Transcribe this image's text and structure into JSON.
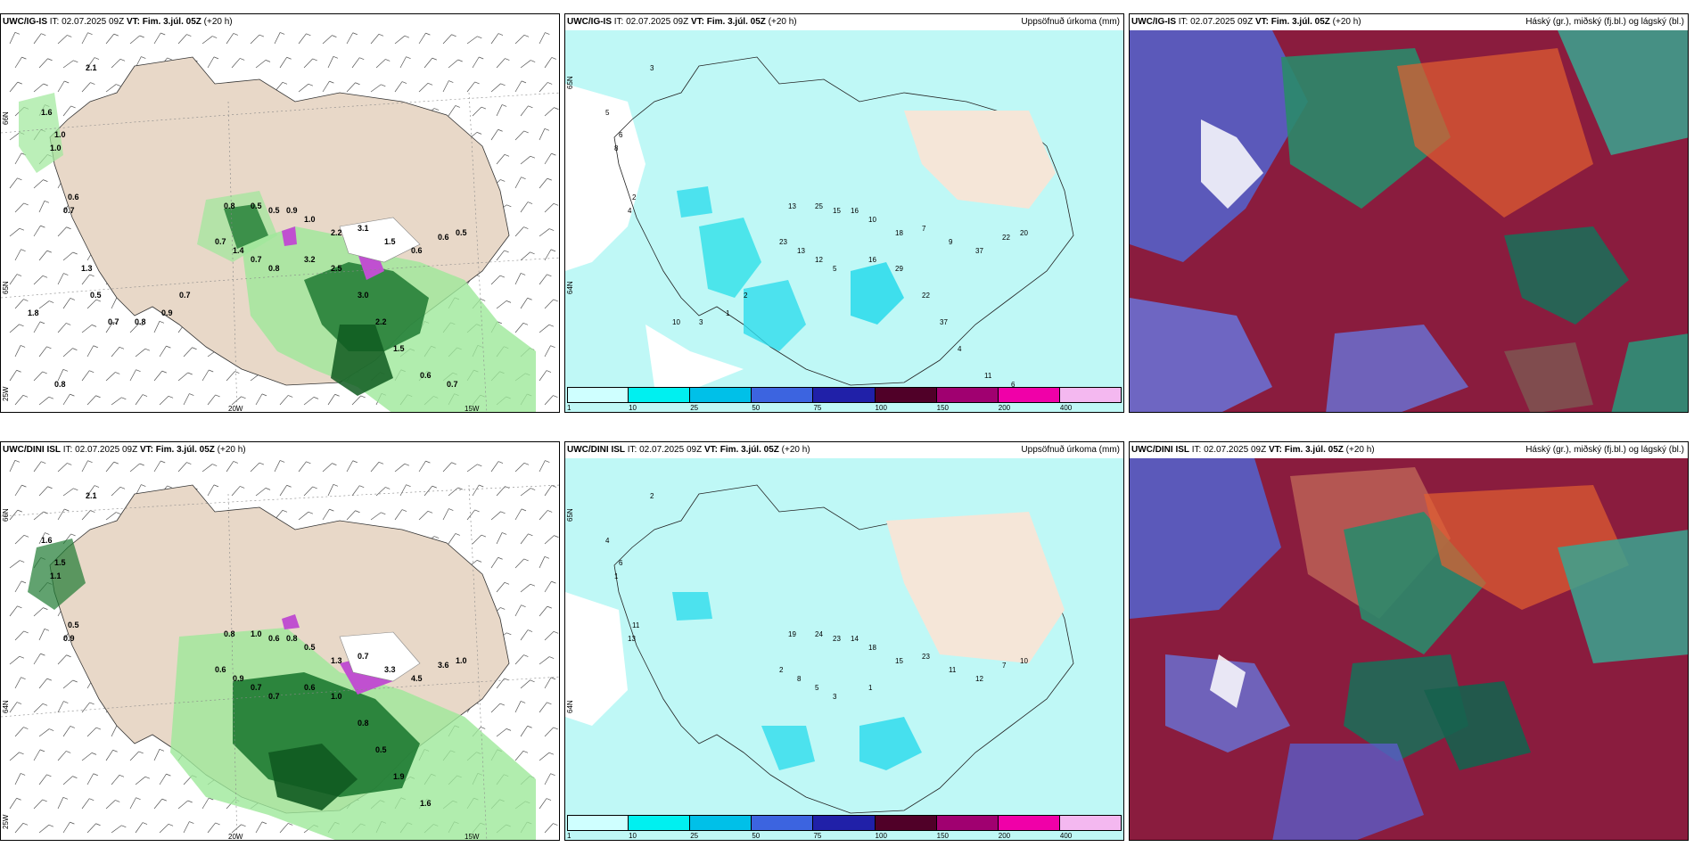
{
  "panels": {
    "p1": {
      "model": "UWC/IG-IS",
      "it": "IT: 02.07.2025 09Z",
      "vt": "VT: Fim. 3.júl. 05Z",
      "lead": "(+20 h)"
    },
    "p2": {
      "model": "UWC/IG-IS",
      "it": "IT: 02.07.2025 09Z",
      "vt": "VT: Fim. 3.júl. 05Z",
      "lead": "(+20 h)",
      "right": "Uppsöfnuð úrkoma (mm)"
    },
    "p3": {
      "model": "UWC/IG-IS",
      "it": "IT: 02.07.2025 09Z",
      "vt": "VT: Fim. 3.júl. 05Z",
      "lead": "(+20 h)",
      "right": "Háský (gr.), miðský (fj.bl.) og lágský (bl.)"
    },
    "p4": {
      "model": "UWC/DINI ISL",
      "it": "IT: 02.07.2025 09Z",
      "vt": "VT: Fim. 3.júl. 05Z",
      "lead": "(+20 h)"
    },
    "p5": {
      "model": "UWC/DINI ISL",
      "it": "IT: 02.07.2025 09Z",
      "vt": "VT: Fim. 3.júl. 05Z",
      "lead": "(+20 h)",
      "right": "Uppsöfnuð úrkoma (mm)"
    },
    "p6": {
      "model": "UWC/DINI ISL",
      "it": "IT: 02.07.2025 09Z",
      "vt": "VT: Fim. 3.júl. 05Z",
      "lead": "(+20 h)",
      "right": "Háský (gr.), miðský (fj.bl.) og lágský (bl.)"
    }
  },
  "axes": {
    "lat66": "66N",
    "lat64": "64N",
    "lon25": "25W",
    "lon20": "20W",
    "lon15": "15W",
    "lat65": "65N"
  },
  "colorbar": {
    "ticks": [
      "1",
      "10",
      "25",
      "50",
      "75",
      "100",
      "150",
      "200",
      "400"
    ],
    "colors": [
      "#cfffff",
      "#00f0f0",
      "#00c0e8",
      "#3c64e0",
      "#2020a8",
      "#500028",
      "#a00070",
      "#f000a8",
      "#f4b8f0"
    ]
  },
  "labels": {
    "p1": [
      "2.1",
      "1.6",
      "1.0",
      "1.0",
      "0.6",
      "0.7",
      "0.8",
      "0.5",
      "0.5",
      "0.9",
      "1.0",
      "2.2",
      "3.1",
      "1.5",
      "0.6",
      "0.6",
      "0.5",
      "0.7",
      "1.4",
      "0.7",
      "0.8",
      "3.2",
      "2.5",
      "3.0",
      "2.2",
      "1.5",
      "0.6",
      "0.7",
      "0.7",
      "0.9",
      "0.8",
      "0.7",
      "0.5",
      "1.3",
      "1.8",
      "0.8"
    ],
    "p2": [
      "3",
      "5",
      "6",
      "8",
      "2",
      "4",
      "13",
      "25",
      "15",
      "16",
      "10",
      "18",
      "7",
      "9",
      "37",
      "22",
      "20",
      "23",
      "13",
      "12",
      "5",
      "16",
      "29",
      "22",
      "37",
      "4",
      "11",
      "6",
      "2",
      "1",
      "3",
      "10"
    ],
    "p4": [
      "2.1",
      "1.6",
      "1.5",
      "1.1",
      "0.5",
      "0.9",
      "0.8",
      "1.0",
      "0.6",
      "0.8",
      "0.5",
      "1.3",
      "0.7",
      "3.3",
      "4.5",
      "3.6",
      "1.0",
      "0.6",
      "0.9",
      "0.7",
      "0.7",
      "0.6",
      "1.0",
      "0.8",
      "0.5",
      "1.9",
      "1.6"
    ],
    "p5": [
      "2",
      "4",
      "6",
      "1",
      "11",
      "13",
      "19",
      "24",
      "23",
      "14",
      "18",
      "15",
      "23",
      "11",
      "12",
      "7",
      "10",
      "2",
      "8",
      "5",
      "3",
      "1"
    ]
  }
}
